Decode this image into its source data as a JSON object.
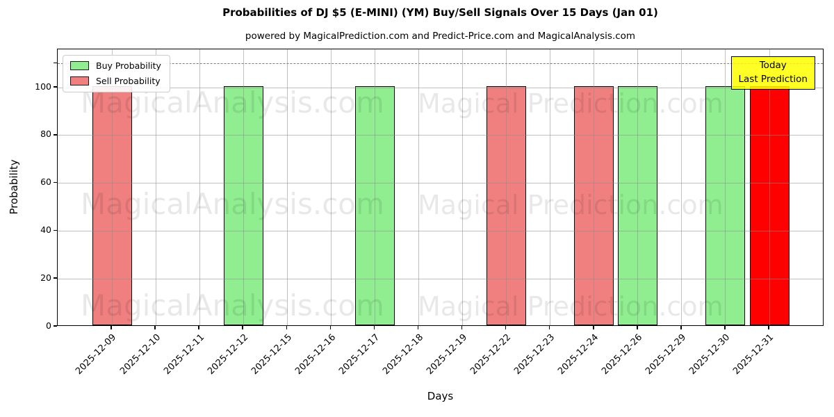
{
  "title": "Probabilities of DJ $5 (E-MINI) (YM) Buy/Sell Signals Over 15 Days (Jan 01)",
  "subtitle": "powered by MagicalPrediction.com and Predict-Price.com and MagicalAnalysis.com",
  "legend": {
    "items": [
      {
        "label": "Buy Probability",
        "color": "#90ee90"
      },
      {
        "label": "Sell Probability",
        "color": "#f08080"
      }
    ]
  },
  "today_box": {
    "line1": "Today",
    "line2": "Last Prediction",
    "bg_color": "#ffff00"
  },
  "watermarks": {
    "left_text": "MagicalAnalysis.com",
    "right_text": "Magical Prediction.com"
  },
  "colors": {
    "buy": "#90ee90",
    "sell": "#f08080",
    "today": "#ff0000",
    "grid": "#b0b0b0",
    "dashed_line": "#7a7a7a",
    "annotation_bg": "#ffff00"
  },
  "chart_data": {
    "type": "bar",
    "title": "Probabilities of DJ $5 (E-MINI) (YM) Buy/Sell Signals Over 15 Days (Jan 01)",
    "subtitle": "powered by MagicalPrediction.com and Predict-Price.com and MagicalAnalysis.com",
    "xlabel": "Days",
    "ylabel": "Probability",
    "ylim": [
      0,
      116
    ],
    "y_ticks": [
      0,
      20,
      40,
      60,
      80,
      100
    ],
    "dashed_line_y": 110,
    "grid": true,
    "legend_position": "upper left",
    "categories": [
      "2025-12-09",
      "2025-12-10",
      "2025-12-11",
      "2025-12-12",
      "2025-12-15",
      "2025-12-16",
      "2025-12-17",
      "2025-12-18",
      "2025-12-19",
      "2025-12-22",
      "2025-12-23",
      "2025-12-24",
      "2025-12-26",
      "2025-12-29",
      "2025-12-30",
      "2025-12-31"
    ],
    "series": [
      {
        "name": "Buy Probability",
        "color": "#90ee90",
        "values": [
          0,
          0,
          0,
          100,
          0,
          0,
          100,
          0,
          0,
          0,
          0,
          0,
          100,
          0,
          100,
          0
        ]
      },
      {
        "name": "Sell Probability",
        "color": "#f08080",
        "values": [
          100,
          0,
          0,
          0,
          0,
          0,
          0,
          0,
          0,
          100,
          0,
          100,
          0,
          0,
          0,
          0
        ]
      },
      {
        "name": "Last Prediction (Today)",
        "color": "#ff0000",
        "values": [
          0,
          0,
          0,
          0,
          0,
          0,
          0,
          0,
          0,
          0,
          0,
          0,
          0,
          0,
          0,
          100
        ]
      }
    ],
    "bars": [
      {
        "date": "2025-12-09",
        "value": 100,
        "signal": "sell"
      },
      {
        "date": "2025-12-10",
        "value": 0,
        "signal": "none"
      },
      {
        "date": "2025-12-11",
        "value": 0,
        "signal": "none"
      },
      {
        "date": "2025-12-12",
        "value": 100,
        "signal": "buy"
      },
      {
        "date": "2025-12-15",
        "value": 0,
        "signal": "none"
      },
      {
        "date": "2025-12-16",
        "value": 0,
        "signal": "none"
      },
      {
        "date": "2025-12-17",
        "value": 100,
        "signal": "buy"
      },
      {
        "date": "2025-12-18",
        "value": 0,
        "signal": "none"
      },
      {
        "date": "2025-12-19",
        "value": 0,
        "signal": "none"
      },
      {
        "date": "2025-12-22",
        "value": 100,
        "signal": "sell"
      },
      {
        "date": "2025-12-23",
        "value": 0,
        "signal": "none"
      },
      {
        "date": "2025-12-24",
        "value": 100,
        "signal": "sell"
      },
      {
        "date": "2025-12-26",
        "value": 100,
        "signal": "buy"
      },
      {
        "date": "2025-12-29",
        "value": 0,
        "signal": "none"
      },
      {
        "date": "2025-12-30",
        "value": 100,
        "signal": "buy"
      },
      {
        "date": "2025-12-31",
        "value": 100,
        "signal": "today"
      }
    ]
  }
}
